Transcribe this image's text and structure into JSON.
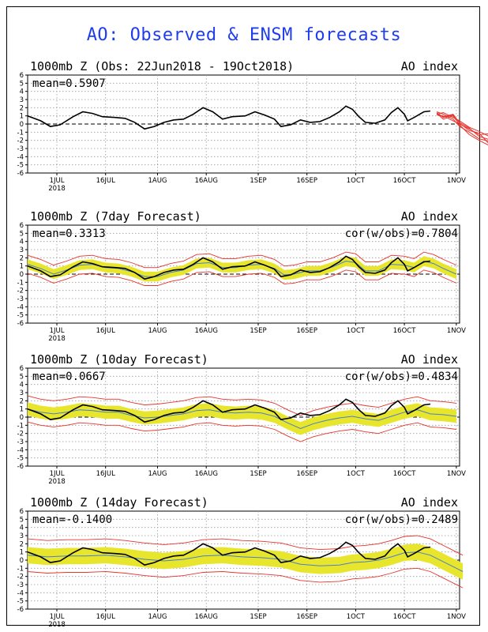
{
  "figure": {
    "title": "AO: Observed & ENSM forecasts",
    "title_color": "#1f3df0",
    "observed_color": "#000000",
    "spread_color": "#e8e62c",
    "ensemble_color": "#e8332c",
    "mean_color": "#4a7fc8"
  },
  "chart_data": [
    {
      "type": "line",
      "title": "1000mb Z (Obs: 22Jun2018 - 19Oct2018)",
      "right_label": "AO index",
      "stat_left": "mean=0.5907",
      "stat_right": "",
      "ylim": [
        -6,
        6
      ],
      "yticks": [
        6,
        5,
        4,
        3,
        2,
        1,
        0,
        -1,
        -2,
        -3,
        -4,
        -5,
        -6
      ],
      "xticks": [
        "1JUL",
        "16JUL",
        "1AUG",
        "16AUG",
        "1SEP",
        "16SEP",
        "1OCT",
        "16OCT",
        "1NOV"
      ],
      "year_label": "2018",
      "observed": [
        [
          0,
          1.0
        ],
        [
          4,
          0.4
        ],
        [
          7,
          -0.3
        ],
        [
          10,
          -0.1
        ],
        [
          14,
          0.9
        ],
        [
          17,
          1.5
        ],
        [
          20,
          1.3
        ],
        [
          23,
          0.9
        ],
        [
          27,
          0.8
        ],
        [
          30,
          0.7
        ],
        [
          33,
          0.2
        ],
        [
          36,
          -0.6
        ],
        [
          39,
          -0.3
        ],
        [
          42,
          0.2
        ],
        [
          45,
          0.5
        ],
        [
          48,
          0.6
        ],
        [
          51,
          1.2
        ],
        [
          54,
          2.0
        ],
        [
          57,
          1.5
        ],
        [
          60,
          0.6
        ],
        [
          63,
          0.9
        ],
        [
          67,
          1.0
        ],
        [
          70,
          1.5
        ],
        [
          73,
          1.1
        ],
        [
          76,
          0.6
        ],
        [
          78,
          -0.3
        ],
        [
          81,
          -0.1
        ],
        [
          84,
          0.5
        ],
        [
          87,
          0.2
        ],
        [
          90,
          0.3
        ],
        [
          93,
          0.8
        ],
        [
          96,
          1.5
        ],
        [
          98,
          2.2
        ],
        [
          100,
          1.8
        ],
        [
          102,
          0.9
        ],
        [
          104,
          0.2
        ],
        [
          107,
          0.1
        ],
        [
          110,
          0.5
        ],
        [
          112,
          1.4
        ],
        [
          114,
          2.0
        ],
        [
          116,
          1.2
        ],
        [
          117,
          0.4
        ],
        [
          119,
          0.8
        ],
        [
          122,
          1.5
        ],
        [
          124,
          1.6
        ]
      ],
      "forecast_members": [
        [
          [
            126,
            1.4
          ],
          [
            128,
            0.8
          ],
          [
            131,
            1.1
          ],
          [
            133,
            0.2
          ],
          [
            136,
            -0.5
          ],
          [
            139,
            -1.5
          ],
          [
            142,
            -1.9
          ],
          [
            143,
            -2.2
          ]
        ],
        [
          [
            126,
            1.3
          ],
          [
            128,
            0.9
          ],
          [
            131,
            1.2
          ],
          [
            133,
            0.1
          ],
          [
            136,
            -0.8
          ],
          [
            139,
            -1.1
          ],
          [
            142,
            -2.4
          ],
          [
            143,
            -2.8
          ]
        ],
        [
          [
            126,
            1.5
          ],
          [
            128,
            1.2
          ],
          [
            131,
            0.6
          ],
          [
            133,
            -0.3
          ],
          [
            136,
            -1.0
          ],
          [
            139,
            -1.8
          ],
          [
            142,
            -2.1
          ],
          [
            143,
            -2.5
          ]
        ],
        [
          [
            126,
            1.2
          ],
          [
            128,
            1.4
          ],
          [
            131,
            0.8
          ],
          [
            133,
            0.4
          ],
          [
            136,
            -0.4
          ],
          [
            139,
            -0.9
          ],
          [
            142,
            -1.5
          ],
          [
            143,
            -1.8
          ]
        ],
        [
          [
            126,
            1.3
          ],
          [
            128,
            0.6
          ],
          [
            131,
            1.0
          ],
          [
            133,
            -0.1
          ],
          [
            136,
            -1.3
          ],
          [
            139,
            -2.0
          ],
          [
            142,
            -2.6
          ],
          [
            143,
            -3.0
          ]
        ],
        [
          [
            126,
            1.1
          ],
          [
            128,
            1.0
          ],
          [
            131,
            0.4
          ],
          [
            133,
            0.0
          ],
          [
            136,
            -0.6
          ],
          [
            139,
            -1.3
          ],
          [
            142,
            -1.2
          ],
          [
            143,
            -2.0
          ]
        ]
      ]
    },
    {
      "type": "line",
      "title": "1000mb Z (7day Forecast)",
      "right_label": "AO index",
      "stat_left": "mean=0.3313",
      "stat_right": "cor(w/obs)=0.7804",
      "ylim": [
        -6,
        6
      ],
      "yticks": [
        6,
        5,
        4,
        3,
        2,
        1,
        0,
        -1,
        -2,
        -3,
        -4,
        -5,
        -6
      ],
      "xticks": [
        "1JUL",
        "16JUL",
        "1AUG",
        "16AUG",
        "1SEP",
        "16SEP",
        "1OCT",
        "16OCT",
        "1NOV"
      ],
      "year_label": "2018",
      "observed": [
        [
          0,
          1.0
        ],
        [
          4,
          0.4
        ],
        [
          7,
          -0.3
        ],
        [
          10,
          -0.1
        ],
        [
          14,
          0.9
        ],
        [
          17,
          1.5
        ],
        [
          20,
          1.3
        ],
        [
          23,
          0.9
        ],
        [
          27,
          0.8
        ],
        [
          30,
          0.7
        ],
        [
          33,
          0.2
        ],
        [
          36,
          -0.6
        ],
        [
          39,
          -0.3
        ],
        [
          42,
          0.2
        ],
        [
          45,
          0.5
        ],
        [
          48,
          0.6
        ],
        [
          51,
          1.2
        ],
        [
          54,
          2.0
        ],
        [
          57,
          1.5
        ],
        [
          60,
          0.6
        ],
        [
          63,
          0.9
        ],
        [
          67,
          1.0
        ],
        [
          70,
          1.5
        ],
        [
          73,
          1.1
        ],
        [
          76,
          0.6
        ],
        [
          78,
          -0.3
        ],
        [
          81,
          -0.1
        ],
        [
          84,
          0.5
        ],
        [
          87,
          0.2
        ],
        [
          90,
          0.3
        ],
        [
          93,
          0.8
        ],
        [
          96,
          1.5
        ],
        [
          98,
          2.2
        ],
        [
          100,
          1.8
        ],
        [
          102,
          0.9
        ],
        [
          104,
          0.2
        ],
        [
          107,
          0.1
        ],
        [
          110,
          0.5
        ],
        [
          112,
          1.4
        ],
        [
          114,
          2.0
        ],
        [
          116,
          1.2
        ],
        [
          117,
          0.4
        ],
        [
          119,
          0.8
        ],
        [
          122,
          1.5
        ],
        [
          124,
          1.6
        ]
      ],
      "ens_mean": [
        [
          0,
          1.2
        ],
        [
          4,
          0.7
        ],
        [
          8,
          0.0
        ],
        [
          12,
          0.5
        ],
        [
          16,
          1.1
        ],
        [
          20,
          1.2
        ],
        [
          24,
          0.8
        ],
        [
          28,
          0.7
        ],
        [
          32,
          0.3
        ],
        [
          36,
          -0.3
        ],
        [
          40,
          -0.3
        ],
        [
          44,
          0.2
        ],
        [
          48,
          0.5
        ],
        [
          52,
          1.3
        ],
        [
          56,
          1.4
        ],
        [
          60,
          0.8
        ],
        [
          64,
          0.8
        ],
        [
          68,
          1.1
        ],
        [
          72,
          1.2
        ],
        [
          76,
          0.7
        ],
        [
          79,
          -0.1
        ],
        [
          82,
          0.0
        ],
        [
          86,
          0.4
        ],
        [
          90,
          0.4
        ],
        [
          94,
          0.9
        ],
        [
          98,
          1.6
        ],
        [
          101,
          1.4
        ],
        [
          104,
          0.4
        ],
        [
          108,
          0.4
        ],
        [
          112,
          1.2
        ],
        [
          116,
          1.1
        ],
        [
          119,
          0.8
        ],
        [
          122,
          1.6
        ],
        [
          125,
          1.3
        ],
        [
          128,
          0.7
        ],
        [
          132,
          0.0
        ]
      ],
      "spread_halfwidth": 0.6,
      "envelope_offset": 1.1
    },
    {
      "type": "line",
      "title": "1000mb Z (10day Forecast)",
      "right_label": "AO index",
      "stat_left": "mean=0.0667",
      "stat_right": "cor(w/obs)=0.4834",
      "ylim": [
        -6,
        6
      ],
      "yticks": [
        6,
        5,
        4,
        3,
        2,
        1,
        0,
        -1,
        -2,
        -3,
        -4,
        -5,
        -6
      ],
      "xticks": [
        "1JUL",
        "16JUL",
        "1AUG",
        "16AUG",
        "1SEP",
        "16SEP",
        "1OCT",
        "16OCT",
        "1NOV"
      ],
      "year_label": "2018",
      "observed": [
        [
          0,
          1.0
        ],
        [
          4,
          0.4
        ],
        [
          7,
          -0.3
        ],
        [
          10,
          -0.1
        ],
        [
          14,
          0.9
        ],
        [
          17,
          1.5
        ],
        [
          20,
          1.3
        ],
        [
          23,
          0.9
        ],
        [
          27,
          0.8
        ],
        [
          30,
          0.7
        ],
        [
          33,
          0.2
        ],
        [
          36,
          -0.6
        ],
        [
          39,
          -0.3
        ],
        [
          42,
          0.2
        ],
        [
          45,
          0.5
        ],
        [
          48,
          0.6
        ],
        [
          51,
          1.2
        ],
        [
          54,
          2.0
        ],
        [
          57,
          1.5
        ],
        [
          60,
          0.6
        ],
        [
          63,
          0.9
        ],
        [
          67,
          1.0
        ],
        [
          70,
          1.5
        ],
        [
          73,
          1.1
        ],
        [
          76,
          0.6
        ],
        [
          78,
          -0.3
        ],
        [
          81,
          -0.1
        ],
        [
          84,
          0.5
        ],
        [
          87,
          0.2
        ],
        [
          90,
          0.3
        ],
        [
          93,
          0.8
        ],
        [
          96,
          1.5
        ],
        [
          98,
          2.2
        ],
        [
          100,
          1.8
        ],
        [
          102,
          0.9
        ],
        [
          104,
          0.2
        ],
        [
          107,
          0.1
        ],
        [
          110,
          0.5
        ],
        [
          112,
          1.4
        ],
        [
          114,
          2.0
        ],
        [
          116,
          1.2
        ],
        [
          117,
          0.4
        ],
        [
          119,
          0.8
        ],
        [
          122,
          1.5
        ],
        [
          124,
          1.6
        ]
      ],
      "ens_mean": [
        [
          0,
          1.0
        ],
        [
          4,
          0.6
        ],
        [
          8,
          0.4
        ],
        [
          12,
          0.6
        ],
        [
          16,
          0.9
        ],
        [
          20,
          0.8
        ],
        [
          24,
          0.6
        ],
        [
          28,
          0.6
        ],
        [
          32,
          0.2
        ],
        [
          36,
          -0.1
        ],
        [
          40,
          0.0
        ],
        [
          44,
          0.2
        ],
        [
          48,
          0.4
        ],
        [
          52,
          0.8
        ],
        [
          56,
          0.9
        ],
        [
          60,
          0.6
        ],
        [
          64,
          0.5
        ],
        [
          68,
          0.6
        ],
        [
          72,
          0.5
        ],
        [
          76,
          0.1
        ],
        [
          80,
          -0.7
        ],
        [
          84,
          -1.4
        ],
        [
          88,
          -0.8
        ],
        [
          92,
          -0.4
        ],
        [
          96,
          -0.1
        ],
        [
          100,
          0.1
        ],
        [
          104,
          -0.2
        ],
        [
          108,
          -0.4
        ],
        [
          112,
          0.1
        ],
        [
          116,
          0.6
        ],
        [
          120,
          0.9
        ],
        [
          124,
          0.4
        ],
        [
          128,
          0.3
        ],
        [
          132,
          0.1
        ]
      ],
      "spread_halfwidth": 0.8,
      "envelope_offset": 1.6
    },
    {
      "type": "line",
      "title": "1000mb Z (14day Forecast)",
      "right_label": "AO index",
      "stat_left": "mean=-0.1400",
      "stat_right": "cor(w/obs)=0.2489",
      "ylim": [
        -6,
        6
      ],
      "yticks": [
        6,
        5,
        4,
        3,
        2,
        1,
        0,
        -1,
        -2,
        -3,
        -4,
        -5,
        -6
      ],
      "xticks": [
        "1JUL",
        "16JUL",
        "1AUG",
        "16AUG",
        "1SEP",
        "16SEP",
        "1OCT",
        "16OCT",
        "1NOV"
      ],
      "year_label": "2018",
      "observed": [
        [
          0,
          1.0
        ],
        [
          4,
          0.4
        ],
        [
          7,
          -0.3
        ],
        [
          10,
          -0.1
        ],
        [
          14,
          0.9
        ],
        [
          17,
          1.5
        ],
        [
          20,
          1.3
        ],
        [
          23,
          0.9
        ],
        [
          27,
          0.8
        ],
        [
          30,
          0.7
        ],
        [
          33,
          0.2
        ],
        [
          36,
          -0.6
        ],
        [
          39,
          -0.3
        ],
        [
          42,
          0.2
        ],
        [
          45,
          0.5
        ],
        [
          48,
          0.6
        ],
        [
          51,
          1.2
        ],
        [
          54,
          2.0
        ],
        [
          57,
          1.5
        ],
        [
          60,
          0.6
        ],
        [
          63,
          0.9
        ],
        [
          67,
          1.0
        ],
        [
          70,
          1.5
        ],
        [
          73,
          1.1
        ],
        [
          76,
          0.6
        ],
        [
          78,
          -0.3
        ],
        [
          81,
          -0.1
        ],
        [
          84,
          0.5
        ],
        [
          87,
          0.2
        ],
        [
          90,
          0.3
        ],
        [
          93,
          0.8
        ],
        [
          96,
          1.5
        ],
        [
          98,
          2.2
        ],
        [
          100,
          1.8
        ],
        [
          102,
          0.9
        ],
        [
          104,
          0.2
        ],
        [
          107,
          0.1
        ],
        [
          110,
          0.5
        ],
        [
          112,
          1.4
        ],
        [
          114,
          2.0
        ],
        [
          116,
          1.2
        ],
        [
          117,
          0.4
        ],
        [
          119,
          0.8
        ],
        [
          122,
          1.5
        ],
        [
          124,
          1.6
        ]
      ],
      "ens_mean": [
        [
          0,
          0.6
        ],
        [
          6,
          0.4
        ],
        [
          12,
          0.5
        ],
        [
          18,
          0.5
        ],
        [
          24,
          0.6
        ],
        [
          30,
          0.4
        ],
        [
          36,
          0.1
        ],
        [
          42,
          -0.1
        ],
        [
          48,
          0.1
        ],
        [
          54,
          0.5
        ],
        [
          60,
          0.6
        ],
        [
          66,
          0.4
        ],
        [
          72,
          0.3
        ],
        [
          78,
          0.1
        ],
        [
          84,
          -0.5
        ],
        [
          90,
          -0.7
        ],
        [
          96,
          -0.6
        ],
        [
          100,
          -0.3
        ],
        [
          104,
          -0.2
        ],
        [
          108,
          0.0
        ],
        [
          112,
          0.4
        ],
        [
          116,
          0.9
        ],
        [
          120,
          1.0
        ],
        [
          124,
          0.6
        ],
        [
          128,
          -0.2
        ],
        [
          132,
          -1.0
        ],
        [
          134,
          -1.4
        ]
      ],
      "spread_halfwidth": 1.0,
      "envelope_offset": 2.0
    }
  ]
}
